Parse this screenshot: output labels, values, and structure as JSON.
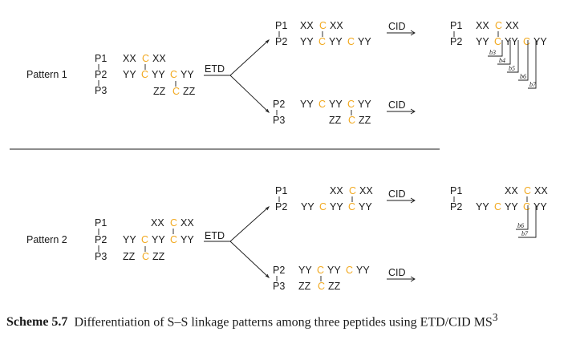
{
  "labels": {
    "P1": "P1",
    "P2": "P2",
    "P3": "P3",
    "ETD": "ETD",
    "CID": "CID",
    "XX": "XX",
    "YY": "YY",
    "ZZ": "ZZ",
    "C": "C"
  },
  "patterns": {
    "pattern1": "Pattern 1",
    "pattern2": "Pattern 2"
  },
  "fragments": {
    "b3": "b3",
    "b4": "b4",
    "b5": "b5",
    "b6": "b6",
    "b7": "b7"
  },
  "caption": {
    "label": "Scheme 5.7",
    "text": "Differentiation of S–S linkage patterns among three peptides using ETD/CID MS",
    "superscript": "3"
  },
  "colors": {
    "cysteine": "#f2a91f",
    "text": "#1a1a1a"
  }
}
